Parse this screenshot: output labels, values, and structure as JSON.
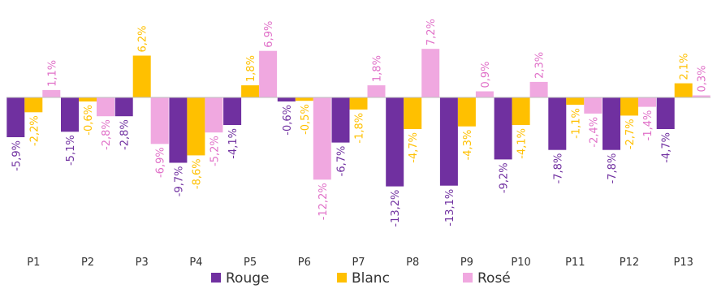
{
  "chart_data": {
    "type": "bar",
    "title": "",
    "xlabel": "",
    "ylabel": "",
    "ylim": [
      -17.5,
      8
    ],
    "grid": false,
    "legend_position": "bottom",
    "categories": [
      "P1",
      "P2",
      "P3",
      "P4",
      "P5",
      "P6",
      "P7",
      "P8",
      "P9",
      "P10",
      "P11",
      "P12",
      "P13"
    ],
    "series": [
      {
        "name": "Rouge",
        "color": "#7030a0",
        "values": [
          -5.9,
          -5.1,
          -2.8,
          -9.7,
          -4.1,
          -0.6,
          -6.7,
          -13.2,
          -13.1,
          -9.2,
          -7.8,
          -7.8,
          -4.7
        ],
        "labels": [
          "-5,9%",
          "-5,1%",
          "-2,8%",
          "-9,7%",
          "-4,1%",
          "-0,6%",
          "-6,7%",
          "-13,2%",
          "-13,1%",
          "-9,2%",
          "-7,8%",
          "-7,8%",
          "-4,7%"
        ]
      },
      {
        "name": "Blanc",
        "color": "#ffc000",
        "values": [
          -2.2,
          -0.6,
          6.2,
          -8.6,
          1.8,
          -0.5,
          -1.8,
          -4.7,
          -4.3,
          -4.1,
          -1.1,
          -2.7,
          2.1
        ],
        "labels": [
          "-2,2%",
          "-0,6%",
          "6,2%",
          "-8,6%",
          "1,8%",
          "-0,5%",
          "-1,8%",
          "-4,7%",
          "-4,3%",
          "-4,1%",
          "-1,1%",
          "-2,7%",
          "2,1%"
        ]
      },
      {
        "name": "Rosé",
        "color": "#f0a8e0",
        "values": [
          1.1,
          -2.8,
          -6.9,
          -5.2,
          6.9,
          -12.2,
          1.8,
          7.2,
          0.9,
          2.3,
          -2.4,
          -1.4,
          0.3
        ],
        "labels": [
          "1,1%",
          "-2,8%",
          "-6,9%",
          "-5,2%",
          "6,9%",
          "-12,2%",
          "1,8%",
          "7,2%",
          "0,9%",
          "2,3%",
          "-2,4%",
          "-1,4%",
          "0,3%"
        ]
      }
    ],
    "label_colors": [
      "#7030a0",
      "#ffc000",
      "#e070c8"
    ]
  }
}
